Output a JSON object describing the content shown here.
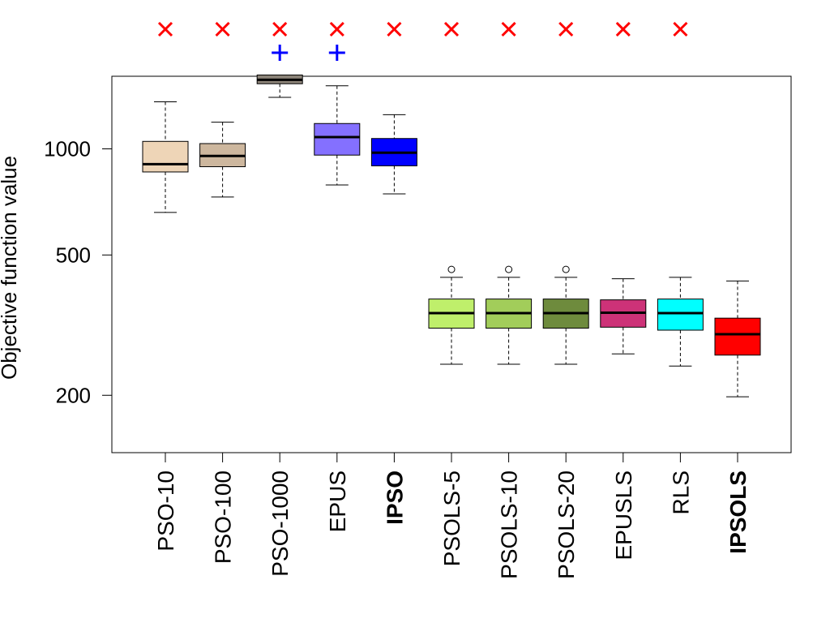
{
  "chart_data": {
    "type": "boxplot",
    "title": "",
    "ylabel": "Objective function value",
    "xlabel": "",
    "yscale": "log",
    "ylim": [
      150,
      1700
    ],
    "yticks": [
      {
        "value": 200,
        "label": "200"
      },
      {
        "value": 500,
        "label": "500"
      },
      {
        "value": 1000,
        "label": "1000"
      }
    ],
    "categories": [
      "PSO-10",
      "PSO-100",
      "PSO-1000",
      "EPUS",
      "IPSO",
      "PSOLS-5",
      "PSOLS-10",
      "PSOLS-20",
      "EPUSLS",
      "RLS",
      "IPSOLS"
    ],
    "bold_categories": [
      "IPSO",
      "IPSOLS"
    ],
    "boxes": [
      {
        "name": "PSO-10",
        "color": "#eed5b7",
        "whisker_low": 660,
        "q1": 860,
        "median": 905,
        "q3": 1050,
        "whisker_high": 1360,
        "outliers": [],
        "significant_x": true,
        "significant_plus": false
      },
      {
        "name": "PSO-100",
        "color": "#cdb79e",
        "whisker_low": 730,
        "q1": 890,
        "median": 955,
        "q3": 1035,
        "whisker_high": 1190,
        "outliers": [],
        "significant_x": true,
        "significant_plus": false
      },
      {
        "name": "PSO-1000",
        "color": "#8b8378",
        "whisker_low": 1400,
        "q1": 1530,
        "median": 1570,
        "q3": 1620,
        "whisker_high": 1750,
        "outliers": [],
        "significant_x": true,
        "significant_plus": true
      },
      {
        "name": "EPUS",
        "color": "#8470ff",
        "whisker_low": 790,
        "q1": 960,
        "median": 1080,
        "q3": 1180,
        "whisker_high": 1510,
        "outliers": [],
        "significant_x": true,
        "significant_plus": true
      },
      {
        "name": "IPSO",
        "color": "#0000ff",
        "whisker_low": 745,
        "q1": 895,
        "median": 975,
        "q3": 1070,
        "whisker_high": 1250,
        "outliers": [],
        "significant_x": true,
        "significant_plus": false
      },
      {
        "name": "PSOLS-5",
        "color": "#bfef6b",
        "whisker_low": 245,
        "q1": 310,
        "median": 342,
        "q3": 375,
        "whisker_high": 432,
        "outliers": [
          455
        ],
        "significant_x": true,
        "significant_plus": false
      },
      {
        "name": "PSOLS-10",
        "color": "#a2cd5a",
        "whisker_low": 245,
        "q1": 310,
        "median": 342,
        "q3": 375,
        "whisker_high": 432,
        "outliers": [
          455
        ],
        "significant_x": true,
        "significant_plus": false
      },
      {
        "name": "PSOLS-20",
        "color": "#6e8b3d",
        "whisker_low": 245,
        "q1": 310,
        "median": 342,
        "q3": 375,
        "whisker_high": 432,
        "outliers": [
          455
        ],
        "significant_x": true,
        "significant_plus": false
      },
      {
        "name": "EPUSLS",
        "color": "#cd3278",
        "whisker_low": 262,
        "q1": 312,
        "median": 343,
        "q3": 373,
        "whisker_high": 428,
        "outliers": [],
        "significant_x": true,
        "significant_plus": false
      },
      {
        "name": "RLS",
        "color": "#00ffff",
        "whisker_low": 242,
        "q1": 306,
        "median": 342,
        "q3": 375,
        "whisker_high": 432,
        "outliers": [],
        "significant_x": true,
        "significant_plus": false
      },
      {
        "name": "IPSOLS",
        "color": "#ff0000",
        "whisker_low": 198,
        "q1": 260,
        "median": 298,
        "q3": 331,
        "whisker_high": 422,
        "outliers": [],
        "significant_x": false,
        "significant_plus": false
      }
    ],
    "marker_colors": {
      "x": "#ff0000",
      "plus": "#0000ff"
    }
  }
}
